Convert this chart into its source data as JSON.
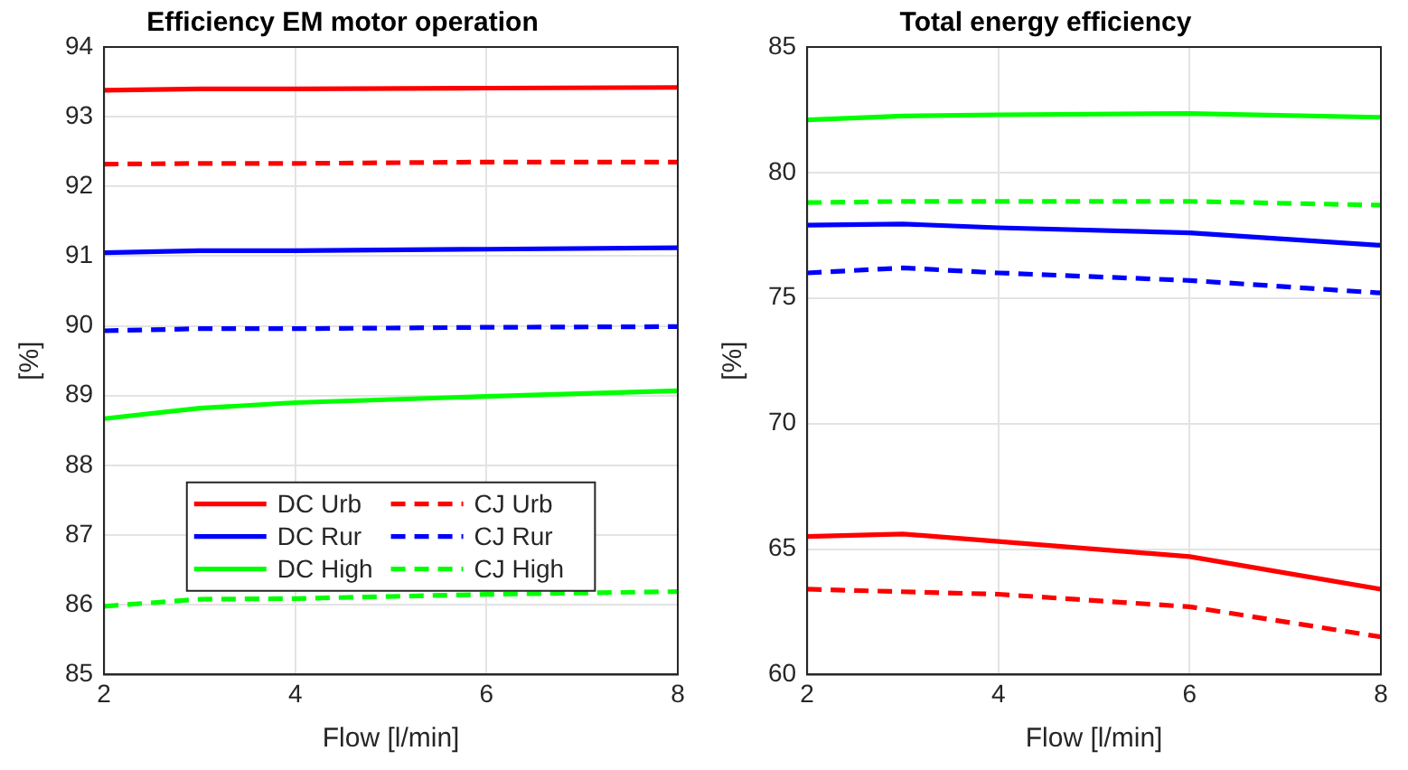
{
  "chart_data": [
    {
      "type": "line",
      "title": "Efficiency EM motor operation",
      "xlabel": "Flow [l/min]",
      "ylabel": "[%]",
      "x": [
        2,
        3,
        4,
        6,
        8
      ],
      "xlim": [
        2,
        8
      ],
      "xticks": [
        2,
        4,
        6,
        8
      ],
      "ylim": [
        85,
        94
      ],
      "yticks": [
        85,
        86,
        87,
        88,
        89,
        90,
        91,
        92,
        93,
        94
      ],
      "grid": true,
      "legend": "bottom",
      "marker": "none",
      "series": [
        {
          "name": "DC Urb",
          "color": "#ff0000",
          "line_style": "solid",
          "values": [
            93.38,
            93.4,
            93.4,
            93.41,
            93.42
          ]
        },
        {
          "name": "CJ Urb",
          "color": "#ff0000",
          "line_style": "dashed",
          "values": [
            92.32,
            92.33,
            92.33,
            92.35,
            92.35
          ]
        },
        {
          "name": "DC Rur",
          "color": "#0000ff",
          "line_style": "solid",
          "values": [
            91.05,
            91.08,
            91.08,
            91.1,
            91.12
          ]
        },
        {
          "name": "CJ Rur",
          "color": "#0000ff",
          "line_style": "dashed",
          "values": [
            89.93,
            89.96,
            89.96,
            89.98,
            89.99
          ]
        },
        {
          "name": "DC High",
          "color": "#00ff00",
          "line_style": "solid",
          "values": [
            88.67,
            88.82,
            88.9,
            88.99,
            89.07
          ]
        },
        {
          "name": "CJ High",
          "color": "#00ff00",
          "line_style": "dashed",
          "values": [
            85.98,
            86.08,
            86.09,
            86.15,
            86.19
          ]
        }
      ]
    },
    {
      "type": "line",
      "title": "Total energy efficiency",
      "xlabel": "Flow [l/min]",
      "ylabel": "[%]",
      "x": [
        2,
        3,
        4,
        6,
        8
      ],
      "xlim": [
        2,
        8
      ],
      "xticks": [
        2,
        4,
        6,
        8
      ],
      "ylim": [
        60,
        85
      ],
      "yticks": [
        60,
        65,
        70,
        75,
        80,
        85
      ],
      "grid": true,
      "marker": "none",
      "series": [
        {
          "color": "#ff0000",
          "line_style": "solid",
          "values": [
            65.5,
            65.6,
            65.3,
            64.7,
            63.4
          ]
        },
        {
          "color": "#ff0000",
          "line_style": "dashed",
          "values": [
            63.4,
            63.3,
            63.2,
            62.7,
            61.5
          ]
        },
        {
          "color": "#0000ff",
          "line_style": "solid",
          "values": [
            77.9,
            77.95,
            77.8,
            77.6,
            77.1
          ]
        },
        {
          "color": "#0000ff",
          "line_style": "dashed",
          "values": [
            76.0,
            76.2,
            76.0,
            75.7,
            75.2
          ]
        },
        {
          "color": "#00ff00",
          "line_style": "solid",
          "values": [
            82.1,
            82.25,
            82.3,
            82.35,
            82.2
          ]
        },
        {
          "color": "#00ff00",
          "line_style": "dashed",
          "values": [
            78.8,
            78.85,
            78.85,
            78.85,
            78.7
          ]
        }
      ]
    }
  ]
}
